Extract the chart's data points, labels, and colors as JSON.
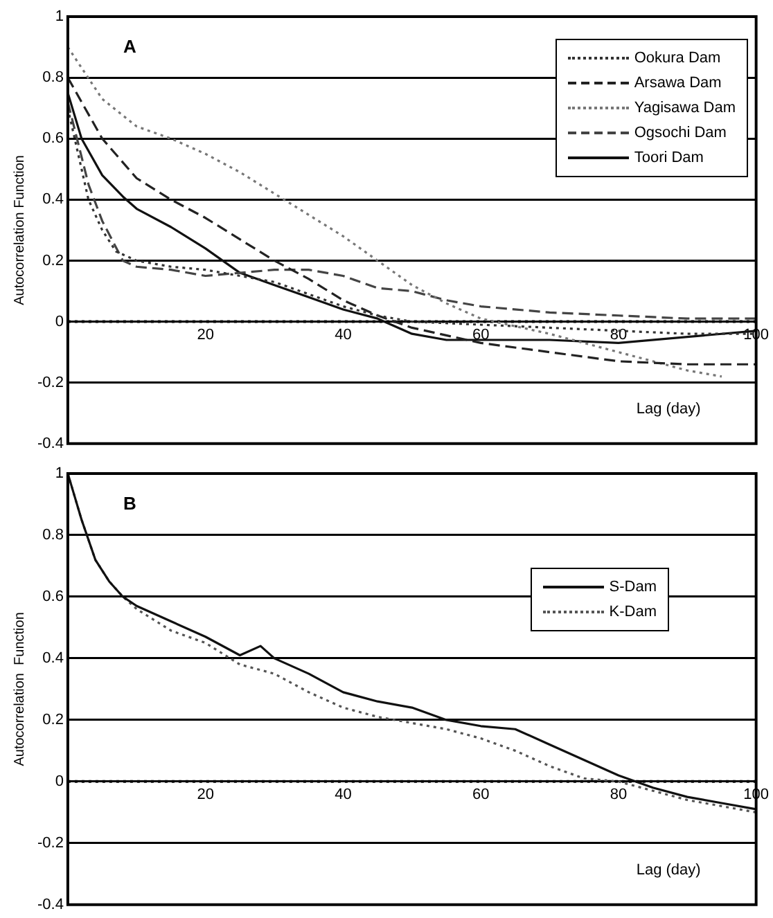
{
  "chart_data": [
    {
      "type": "line",
      "annotations": [
        "A"
      ],
      "xlabel": "Lag (day)",
      "ylabel": "Autocorrelation Function",
      "xlim": [
        0,
        100
      ],
      "xticks": [
        20,
        40,
        60,
        80,
        100
      ],
      "ylim": [
        -0.4,
        1
      ],
      "yticks": [
        -0.4,
        -0.2,
        0,
        0.2,
        0.4,
        0.6,
        0.8,
        1
      ],
      "grid": "y",
      "legend": "top right",
      "marker": "none",
      "ref_lines": [
        {
          "axis": "y",
          "value": 0,
          "line_style": "dotted",
          "color": "#000000"
        }
      ],
      "series": [
        {
          "name": "Ookura Dam",
          "color": "#333333",
          "line_style": "dotted",
          "x": [
            0,
            3,
            5,
            7,
            10,
            15,
            20,
            25,
            30,
            35,
            40,
            45,
            50,
            60,
            70,
            80,
            90,
            100
          ],
          "values": [
            0.7,
            0.4,
            0.3,
            0.23,
            0.2,
            0.18,
            0.17,
            0.15,
            0.13,
            0.09,
            0.05,
            0.02,
            0,
            -0.01,
            -0.02,
            -0.03,
            -0.04,
            -0.04
          ]
        },
        {
          "name": "Arsawa Dam",
          "color": "#222222",
          "line_style": "dashed",
          "x": [
            0,
            5,
            10,
            15,
            20,
            25,
            30,
            35,
            40,
            45,
            50,
            60,
            70,
            80,
            90,
            100
          ],
          "values": [
            0.8,
            0.6,
            0.47,
            0.4,
            0.34,
            0.27,
            0.2,
            0.14,
            0.07,
            0.02,
            -0.02,
            -0.07,
            -0.1,
            -0.13,
            -0.14,
            -0.14
          ]
        },
        {
          "name": "Yagisawa Dam",
          "color": "#777777",
          "line_style": "dotted",
          "x": [
            0,
            5,
            10,
            15,
            20,
            25,
            30,
            35,
            40,
            45,
            50,
            55,
            60,
            70,
            80,
            90,
            95
          ],
          "values": [
            0.9,
            0.73,
            0.64,
            0.6,
            0.55,
            0.49,
            0.42,
            0.35,
            0.28,
            0.2,
            0.12,
            0.06,
            0.01,
            -0.04,
            -0.1,
            -0.16,
            -0.18
          ]
        },
        {
          "name": "Ogsochi Dam",
          "color": "#444444",
          "line_style": "dashed",
          "x": [
            0,
            3,
            5,
            8,
            10,
            15,
            20,
            25,
            30,
            35,
            40,
            45,
            50,
            55,
            60,
            70,
            80,
            90,
            100
          ],
          "values": [
            0.72,
            0.45,
            0.33,
            0.2,
            0.18,
            0.17,
            0.15,
            0.16,
            0.17,
            0.17,
            0.15,
            0.11,
            0.1,
            0.07,
            0.05,
            0.03,
            0.02,
            0.01,
            0.01
          ]
        },
        {
          "name": "Toori  Dam",
          "color": "#111111",
          "line_style": "solid",
          "x": [
            0,
            2,
            5,
            8,
            10,
            15,
            20,
            25,
            30,
            35,
            40,
            45,
            50,
            55,
            60,
            70,
            80,
            90,
            100
          ],
          "values": [
            0.75,
            0.6,
            0.48,
            0.41,
            0.37,
            0.31,
            0.24,
            0.16,
            0.12,
            0.08,
            0.04,
            0.01,
            -0.04,
            -0.06,
            -0.06,
            -0.06,
            -0.07,
            -0.05,
            -0.03
          ]
        }
      ]
    },
    {
      "type": "line",
      "annotations": [
        "B"
      ],
      "xlabel": "Lag (day)",
      "ylabel": "Autocorrelation  Function",
      "xlim": [
        0,
        100
      ],
      "xticks": [
        20,
        40,
        60,
        80,
        100
      ],
      "ylim": [
        -0.4,
        1
      ],
      "yticks": [
        -0.4,
        -0.2,
        0,
        0.2,
        0.4,
        0.6,
        0.8,
        1
      ],
      "grid": "y",
      "legend": "top right",
      "marker": "none",
      "ref_lines": [
        {
          "axis": "y",
          "value": 0,
          "line_style": "dotted",
          "color": "#000000"
        }
      ],
      "series": [
        {
          "name": "S-Dam",
          "color": "#111111",
          "line_style": "solid",
          "x": [
            0,
            2,
            4,
            6,
            8,
            10,
            15,
            20,
            25,
            28,
            30,
            35,
            40,
            45,
            50,
            55,
            60,
            65,
            70,
            75,
            80,
            85,
            90,
            95,
            100
          ],
          "values": [
            1,
            0.85,
            0.72,
            0.65,
            0.6,
            0.57,
            0.52,
            0.47,
            0.41,
            0.44,
            0.4,
            0.35,
            0.29,
            0.26,
            0.24,
            0.2,
            0.18,
            0.17,
            0.12,
            0.07,
            0.02,
            -0.02,
            -0.05,
            -0.07,
            -0.09
          ]
        },
        {
          "name": "K-Dam",
          "color": "#555555",
          "line_style": "dotted",
          "x": [
            0,
            2,
            4,
            6,
            8,
            10,
            15,
            20,
            25,
            30,
            35,
            40,
            45,
            50,
            55,
            60,
            65,
            70,
            75,
            80,
            85,
            90,
            95,
            100
          ],
          "values": [
            1,
            0.85,
            0.72,
            0.65,
            0.6,
            0.56,
            0.49,
            0.45,
            0.38,
            0.35,
            0.29,
            0.24,
            0.21,
            0.19,
            0.17,
            0.14,
            0.1,
            0.05,
            0.01,
            0,
            -0.03,
            -0.06,
            -0.08,
            -0.1
          ]
        }
      ]
    }
  ]
}
